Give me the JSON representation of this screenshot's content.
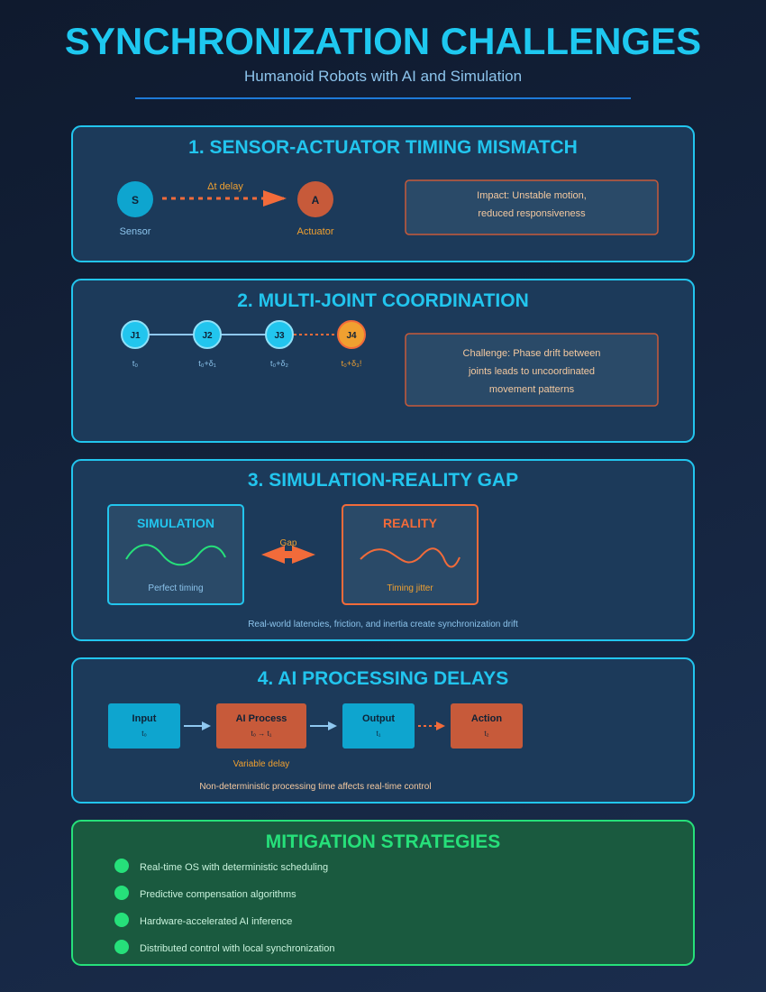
{
  "header": {
    "title": "SYNCHRONIZATION CHALLENGES",
    "subtitle": "Humanoid Robots with AI and Simulation"
  },
  "section1": {
    "title": "1. SENSOR-ACTUATOR TIMING MISMATCH",
    "sensor_letter": "S",
    "sensor_label": "Sensor",
    "actuator_letter": "A",
    "actuator_label": "Actuator",
    "delay_label": "Δt delay",
    "impact_line1": "Impact: Unstable motion,",
    "impact_line2": "reduced responsiveness"
  },
  "section2": {
    "title": "2. MULTI-JOINT COORDINATION",
    "joints": [
      {
        "label": "J1",
        "time": "t₀"
      },
      {
        "label": "J2",
        "time": "t₀+δ₁"
      },
      {
        "label": "J3",
        "time": "t₀+δ₂"
      },
      {
        "label": "J4",
        "time": "t₀+δ₃!"
      }
    ],
    "challenge_line1": "Challenge: Phase drift between",
    "challenge_line2": "joints leads to uncoordinated",
    "challenge_line3": "movement patterns"
  },
  "section3": {
    "title": "3. SIMULATION-REALITY GAP",
    "sim_title": "SIMULATION",
    "sim_caption": "Perfect timing",
    "real_title": "REALITY",
    "real_caption": "Timing jitter",
    "gap_label": "Gap",
    "footer": "Real-world latencies, friction, and inertia create synchronization drift"
  },
  "section4": {
    "title": "4. AI PROCESSING DELAYS",
    "steps": [
      {
        "label": "Input",
        "time": "t₀"
      },
      {
        "label": "AI Process",
        "time": "t₀ → t₁"
      },
      {
        "label": "Output",
        "time": "t₁"
      },
      {
        "label": "Action",
        "time": "t₂"
      }
    ],
    "variable_delay": "Variable delay",
    "footer": "Non-deterministic processing time affects real-time control"
  },
  "mitigation": {
    "title": "MITIGATION STRATEGIES",
    "items": [
      "Real-time OS with deterministic scheduling",
      "Predictive compensation algorithms",
      "Hardware-accelerated AI inference",
      "Distributed control with local synchronization"
    ]
  },
  "colors": {
    "cyan": "#22c5ee",
    "cyan_fill": "#0ea5cf",
    "orange": "#f26b3a",
    "orange_fill": "#c75a3a",
    "amber": "#f0a030",
    "green": "#26e07a",
    "panel": "#1c3a5a",
    "green_panel": "#1a5a3f"
  }
}
